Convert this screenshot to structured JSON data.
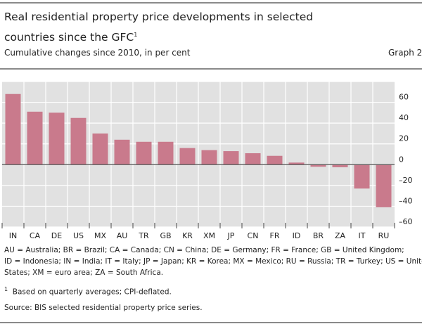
{
  "header": {
    "title": "Real residential property price developments in selected countries since the GFC",
    "title_footnote_mark": "1",
    "subtitle": "Cumulative changes since 2010, in per cent",
    "graph_number": "Graph 2"
  },
  "chart_data": {
    "type": "bar",
    "categories": [
      "IN",
      "CA",
      "DE",
      "US",
      "MX",
      "AU",
      "TR",
      "GB",
      "KR",
      "XM",
      "JP",
      "CN",
      "FR",
      "ID",
      "BR",
      "ZA",
      "IT",
      "RU"
    ],
    "values": [
      68,
      51,
      50,
      45,
      30,
      24,
      22,
      22,
      16,
      14,
      13,
      11,
      8.5,
      2,
      -2,
      -2.5,
      -23,
      -41
    ],
    "ylim": [
      -60,
      80
    ],
    "yticks": [
      60,
      40,
      20,
      0,
      -20,
      -40,
      -60
    ],
    "ytick_labels": [
      "60",
      "40",
      "20",
      "0",
      "–20",
      "–40",
      "–60"
    ],
    "y_axis_side": "right",
    "grid": true,
    "colors": {
      "bar": "#c97a8c",
      "plot_bg": "#e1e1e1",
      "grid": "#ffffff",
      "zero_line": "#555555"
    }
  },
  "footer": {
    "abbreviations": [
      "AU = Australia; BR = Brazil; CA = Canada; CN = China; DE = Germany; FR = France; GB = United Kingdom;",
      "ID = Indonesia; IN = India; IT = Italy; JP = Japan; KR = Korea; MX = Mexico; RU = Russia; TR = Turkey; US = United",
      "States; XM = euro area; ZA = South Africa."
    ],
    "footnote_mark": "1",
    "footnote": "Based on quarterly averages; CPI-deflated.",
    "source": "Source: BIS selected residential property price series."
  }
}
